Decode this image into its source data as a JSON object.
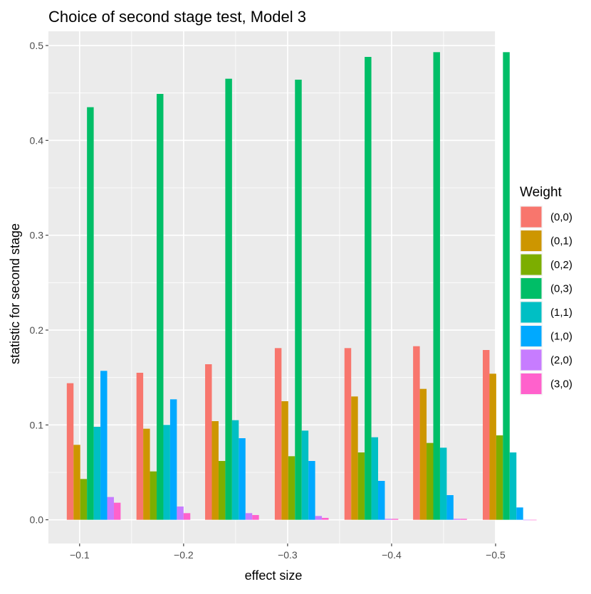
{
  "chart_data": {
    "type": "bar",
    "title": "Choice of second stage test, Model 3",
    "xlabel": "effect size",
    "ylabel": "statistic for second stage",
    "legend_title": "Weight",
    "legend_position": "right",
    "grid": true,
    "ylim": [
      -0.025,
      0.515
    ],
    "xlim": [
      -0.07,
      -0.5
    ],
    "x_ticks": [
      {
        "value": -0.1,
        "label": "−0.1"
      },
      {
        "value": -0.2,
        "label": "−0.2"
      },
      {
        "value": -0.3,
        "label": "−0.3"
      },
      {
        "value": -0.4,
        "label": "−0.4"
      },
      {
        "value": -0.5,
        "label": "−0.5"
      }
    ],
    "y_ticks": [
      {
        "value": 0.0,
        "label": "0.0"
      },
      {
        "value": 0.1,
        "label": "0.1"
      },
      {
        "value": 0.2,
        "label": "0.2"
      },
      {
        "value": 0.3,
        "label": "0.3"
      },
      {
        "value": 0.4,
        "label": "0.4"
      },
      {
        "value": 0.5,
        "label": "0.5"
      }
    ],
    "x": [
      -0.1,
      -0.167,
      -0.233,
      -0.3,
      -0.367,
      -0.433,
      -0.5
    ],
    "series": [
      {
        "name": "(0,0)",
        "color": "#F8766D",
        "values": [
          0.144,
          0.155,
          0.164,
          0.181,
          0.181,
          0.183,
          0.179
        ]
      },
      {
        "name": "(0,1)",
        "color": "#CD9600",
        "values": [
          0.079,
          0.096,
          0.104,
          0.125,
          0.13,
          0.138,
          0.154
        ]
      },
      {
        "name": "(0,2)",
        "color": "#7CAE00",
        "values": [
          0.043,
          0.051,
          0.062,
          0.067,
          0.071,
          0.081,
          0.089
        ]
      },
      {
        "name": "(0,3)",
        "color": "#00BE67",
        "values": [
          0.435,
          0.449,
          0.465,
          0.464,
          0.488,
          0.493,
          0.493
        ]
      },
      {
        "name": "(1,1)",
        "color": "#00BFC4",
        "values": [
          0.098,
          0.1,
          0.105,
          0.094,
          0.087,
          0.076,
          0.071
        ]
      },
      {
        "name": "(1,0)",
        "color": "#00A9FF",
        "values": [
          0.157,
          0.127,
          0.086,
          0.062,
          0.041,
          0.026,
          0.013
        ]
      },
      {
        "name": "(2,0)",
        "color": "#C77CFF",
        "values": [
          0.024,
          0.014,
          0.007,
          0.004,
          0.001,
          0.001,
          0.0
        ]
      },
      {
        "name": "(3,0)",
        "color": "#FF61CC",
        "values": [
          0.018,
          0.007,
          0.005,
          0.002,
          0.001,
          0.001,
          0.0
        ]
      }
    ]
  }
}
